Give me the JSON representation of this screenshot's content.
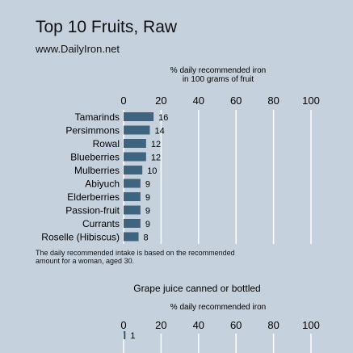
{
  "title": "Top 10 Fruits, Raw",
  "subtitle": "www.DailyIron.net",
  "note": "The daily recommended intake is based on the recommended amount for a woman, aged 30.",
  "colors": {
    "background": "#c5d1dd",
    "bar": "#3f6480",
    "grid": "#ffffff"
  },
  "chart_data": [
    {
      "type": "bar",
      "orientation": "horizontal",
      "title": "",
      "xlabel": [
        "% daily recommended iron",
        "in 100 grams of fruit"
      ],
      "xlim": [
        0,
        100
      ],
      "xticks": [
        "0",
        "20",
        "40",
        "60",
        "80",
        "100"
      ],
      "grid": true,
      "categories": [
        "Tamarinds",
        "Persimmons",
        "Rowal",
        "Blueberries",
        "Mulberries",
        "Abiyuch",
        "Elderberries",
        "Passion-fruit",
        "Currants",
        "Roselle (Hibiscus)"
      ],
      "values": [
        16,
        14,
        12,
        12,
        10,
        9,
        9,
        9,
        9,
        8
      ],
      "value_labels": [
        "16",
        "14",
        "12",
        "12",
        "10",
        "9",
        "9",
        "9",
        "9",
        "8"
      ]
    },
    {
      "type": "bar",
      "orientation": "horizontal",
      "title": "Grape juice canned or bottled",
      "xlabel": [
        "% daily recommended iron"
      ],
      "xlim": [
        0,
        100
      ],
      "xticks": [
        "0",
        "20",
        "40",
        "60",
        "80",
        "100"
      ],
      "grid": true,
      "categories": [
        ""
      ],
      "values": [
        1
      ],
      "value_labels": [
        "1"
      ]
    }
  ]
}
